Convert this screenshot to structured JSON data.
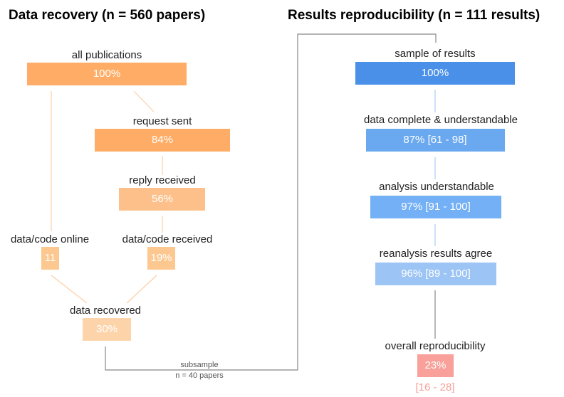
{
  "left": {
    "title": "Data recovery (n = 560 papers)",
    "nodes": [
      {
        "label": "all publications",
        "value": "100%"
      },
      {
        "label": "request sent",
        "value": "84%"
      },
      {
        "label": "reply received",
        "value": "56%"
      },
      {
        "label": "data/code online",
        "value": "11"
      },
      {
        "label": "data/code received",
        "value": "19%"
      },
      {
        "label": "data recovered",
        "value": "30%"
      }
    ]
  },
  "subsample": {
    "label": "subsample",
    "note": "n = 40 papers"
  },
  "right": {
    "title": "Results reproducibility (n = 111 results)",
    "nodes": [
      {
        "label": "sample of results",
        "value": "100%"
      },
      {
        "label": "data complete & understandable",
        "value": "87% [61 - 98]"
      },
      {
        "label": "analysis understandable",
        "value": "97% [91 - 100]"
      },
      {
        "label": "reanalysis results agree",
        "value": "96% [89 - 100]"
      },
      {
        "label": "overall reproducibility",
        "value": "23%",
        "interval": "[16 - 28]"
      }
    ]
  }
}
